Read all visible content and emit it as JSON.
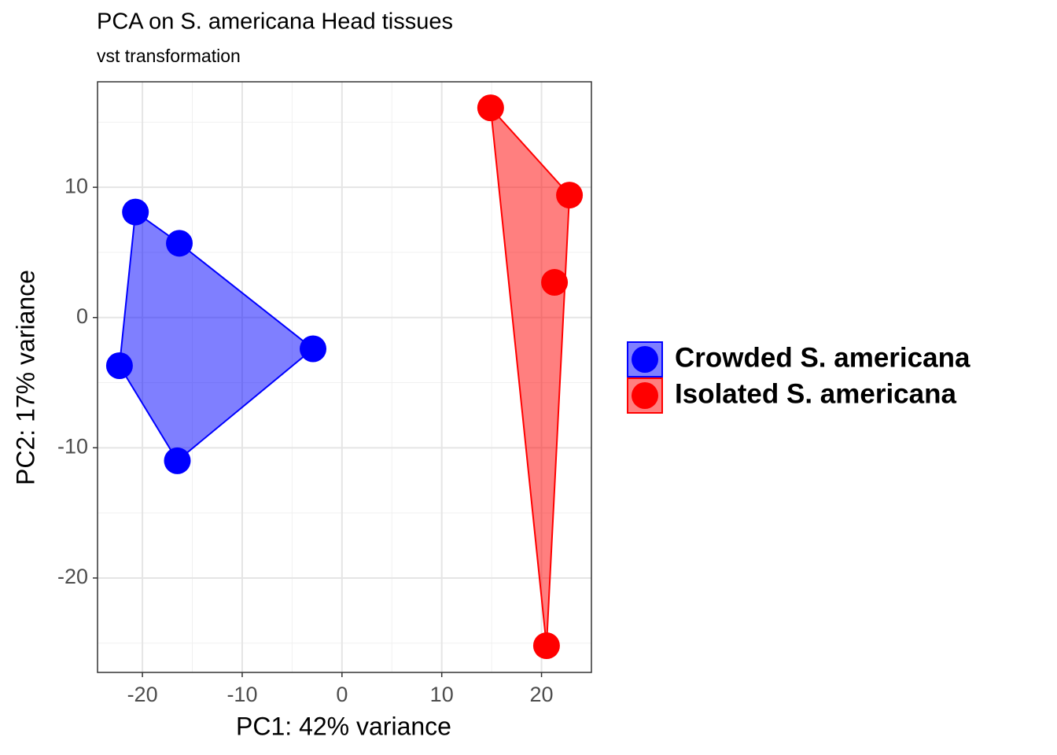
{
  "chart_data": {
    "type": "scatter",
    "title": "PCA on S. americana Head tissues",
    "subtitle": "vst transformation",
    "xlabel": "PC1: 42% variance",
    "ylabel": "PC2: 17% variance",
    "xlim": [
      -24.5,
      25
    ],
    "ylim": [
      -27.25,
      18.1
    ],
    "xticks": [
      -20,
      -10,
      0,
      10,
      20
    ],
    "yticks": [
      -20,
      -10,
      0,
      10
    ],
    "xminor": [
      -15,
      -5,
      5,
      15
    ],
    "yminor": [
      -25,
      -15,
      -5,
      5,
      15
    ],
    "grid": true,
    "hull": true,
    "legend": "right",
    "series": [
      {
        "name": "Crowded S. americana",
        "color": "#0000ff",
        "x": [
          -20.7,
          -16.3,
          -2.9,
          -22.3,
          -16.5
        ],
        "y": [
          8.1,
          5.7,
          -2.4,
          -3.7,
          -11.0
        ]
      },
      {
        "name": "Isolated S. americana",
        "color": "#ff0000",
        "x": [
          14.9,
          22.8,
          21.3,
          20.5
        ],
        "y": [
          16.1,
          9.4,
          2.7,
          -25.2
        ]
      }
    ]
  }
}
